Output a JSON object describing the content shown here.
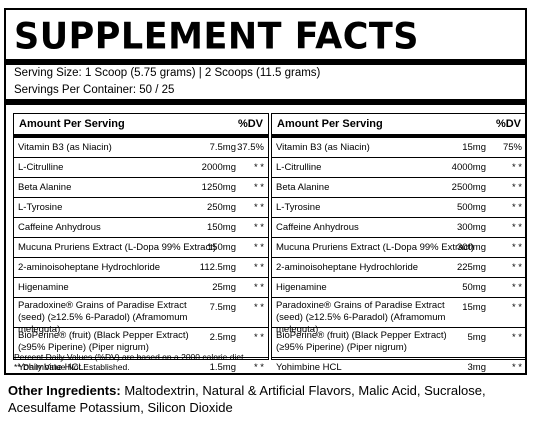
{
  "title": "SUPPLEMENT FACTS",
  "serving_size": "Serving Size: 1 Scoop (5.75 grams) | 2 Scoops (11.5 grams)",
  "servings_per_container": "Servings Per Container: 50 / 25",
  "table": {
    "left": {
      "header_amount": "Amount Per Serving",
      "header_dv": "%DV",
      "rows": [
        {
          "name": "Vitamin B3 (as Niacin)",
          "amount": "7.5mg",
          "dv": "37.5%"
        },
        {
          "name": "L-Citrulline",
          "amount": "2000mg",
          "dv": "* *"
        },
        {
          "name": "Beta Alanine",
          "amount": "1250mg",
          "dv": "* *"
        },
        {
          "name": "L-Tyrosine",
          "amount": "250mg",
          "dv": "* *"
        },
        {
          "name": "Caffeine Anhydrous",
          "amount": "150mg",
          "dv": "* *"
        },
        {
          "name": "Mucuna Pruriens Extract (L-Dopa 99% Extract)",
          "amount": "150mg",
          "dv": "* *"
        },
        {
          "name": "2-aminoisoheptane Hydrochloride",
          "amount": "112.5mg",
          "dv": "* *"
        },
        {
          "name": "Higenamine",
          "amount": "25mg",
          "dv": "* *"
        },
        {
          "name": "Paradoxine® Grains of Paradise Extract (seed) (≥12.5% 6-Paradol) (Aframomum meleguta)",
          "amount": "7.5mg",
          "dv": "* *"
        },
        {
          "name": "BioPerine® (fruit) (Black Pepper Extract) (≥95% Piperine) (Piper nigrum)",
          "amount": "2.5mg",
          "dv": "* *"
        },
        {
          "name": "Yohimbine HCL",
          "amount": "1.5mg",
          "dv": "* *"
        }
      ]
    },
    "right": {
      "header_amount": "Amount Per Serving",
      "header_dv": "%DV",
      "rows": [
        {
          "name": "Vitamin B3 (as Niacin)",
          "amount": "15mg",
          "dv": "75%"
        },
        {
          "name": "L-Citrulline",
          "amount": "4000mg",
          "dv": "* *"
        },
        {
          "name": "Beta Alanine",
          "amount": "2500mg",
          "dv": "* *"
        },
        {
          "name": "L-Tyrosine",
          "amount": "500mg",
          "dv": "* *"
        },
        {
          "name": "Caffeine Anhydrous",
          "amount": "300mg",
          "dv": "* *"
        },
        {
          "name": "Mucuna Pruriens Extract (L-Dopa 99% Extract)",
          "amount": "300mg",
          "dv": "* *"
        },
        {
          "name": "2-aminoisoheptane Hydrochloride",
          "amount": "225mg",
          "dv": "* *"
        },
        {
          "name": "Higenamine",
          "amount": "50mg",
          "dv": "* *"
        },
        {
          "name": "Paradoxine® Grains of Paradise Extract (seed) (≥12.5% 6-Paradol) (Aframomum meleguta)",
          "amount": "15mg",
          "dv": "* *"
        },
        {
          "name": "BioPerine® (fruit) (Black Pepper Extract) (≥95% Piperine) (Piper nigrum)",
          "amount": "5mg",
          "dv": "* *"
        },
        {
          "name": "Yohimbine HCL",
          "amount": "3mg",
          "dv": "* *"
        }
      ]
    }
  },
  "footnote_1": "Percent Daily Values (%DV) are based on a 2000 calorie diet",
  "footnote_2": "** Daily Value Not Established.",
  "other_ingredients_label": "Other Ingredients:",
  "other_ingredients_text": "Maltodextrin, Natural & Artificial Flavors, Malic Acid, Sucralose, Acesulfame Potassium, Silicon Dioxide"
}
